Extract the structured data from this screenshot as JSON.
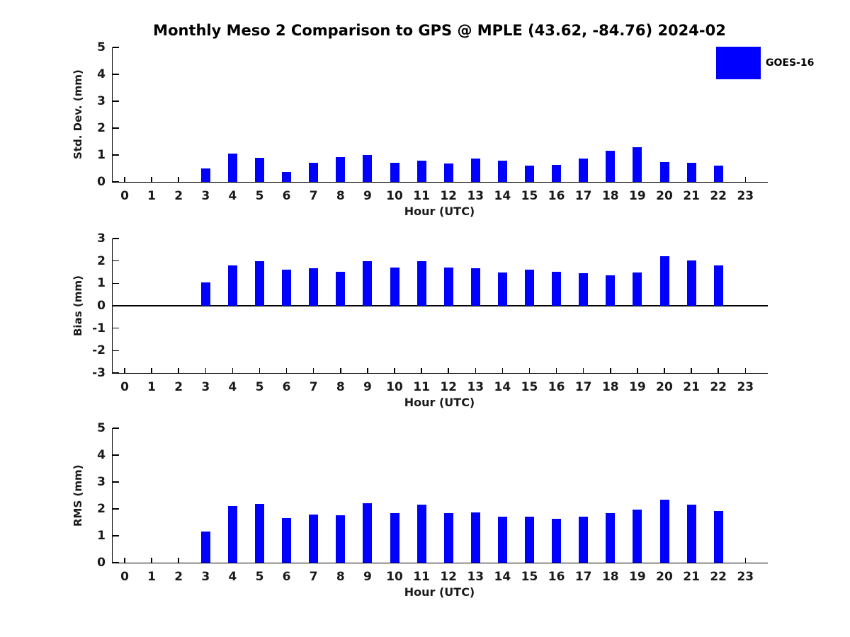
{
  "title": "Monthly Meso 2 Comparison to GPS @ MPLE (43.62, -84.76) 2024-02",
  "legend": {
    "label": "GOES-16",
    "color": "#0000FF",
    "position": "top-right"
  },
  "colors": {
    "bar": "#0000FF",
    "axis": "#000000",
    "tick_text": "#1a1a1a",
    "background": "#ffffff"
  },
  "chart_data": [
    {
      "type": "bar",
      "title": "",
      "xlabel": "Hour (UTC)",
      "ylabel": "Std. Dev. (mm)",
      "ylim": [
        0,
        5
      ],
      "yticks": [
        0,
        1,
        2,
        3,
        4,
        5
      ],
      "categories": [
        "0",
        "1",
        "2",
        "3",
        "4",
        "5",
        "6",
        "7",
        "8",
        "9",
        "10",
        "11",
        "12",
        "13",
        "14",
        "15",
        "16",
        "17",
        "18",
        "19",
        "20",
        "21",
        "22",
        "23"
      ],
      "series": [
        {
          "name": "GOES-16",
          "values": [
            null,
            null,
            null,
            0.5,
            1.04,
            0.9,
            0.38,
            0.7,
            0.91,
            0.99,
            0.7,
            0.78,
            0.69,
            0.87,
            0.8,
            0.6,
            0.63,
            0.87,
            1.17,
            1.28,
            0.74,
            0.71,
            0.6,
            null
          ]
        }
      ],
      "grid": false,
      "legend_position": "upper right"
    },
    {
      "type": "bar",
      "title": "",
      "xlabel": "Hour (UTC)",
      "ylabel": "Bias (mm)",
      "ylim": [
        -3,
        3
      ],
      "yticks": [
        -3,
        -2,
        -1,
        0,
        1,
        2,
        3
      ],
      "categories": [
        "0",
        "1",
        "2",
        "3",
        "4",
        "5",
        "6",
        "7",
        "8",
        "9",
        "10",
        "11",
        "12",
        "13",
        "14",
        "15",
        "16",
        "17",
        "18",
        "19",
        "20",
        "21",
        "22",
        "23"
      ],
      "series": [
        {
          "name": "GOES-16",
          "values": [
            null,
            null,
            null,
            1.05,
            1.8,
            2.0,
            1.62,
            1.68,
            1.52,
            2.0,
            1.7,
            2.0,
            1.7,
            1.67,
            1.5,
            1.6,
            1.53,
            1.46,
            1.37,
            1.5,
            2.22,
            2.02,
            1.8,
            null
          ]
        }
      ],
      "grid": false,
      "zero_line": true
    },
    {
      "type": "bar",
      "title": "",
      "xlabel": "Hour (UTC)",
      "ylabel": "RMS (mm)",
      "ylim": [
        0,
        5
      ],
      "yticks": [
        0,
        1,
        2,
        3,
        4,
        5
      ],
      "categories": [
        "0",
        "1",
        "2",
        "3",
        "4",
        "5",
        "6",
        "7",
        "8",
        "9",
        "10",
        "11",
        "12",
        "13",
        "14",
        "15",
        "16",
        "17",
        "18",
        "19",
        "20",
        "21",
        "22",
        "23"
      ],
      "series": [
        {
          "name": "GOES-16",
          "values": [
            null,
            null,
            null,
            1.15,
            2.1,
            2.18,
            1.65,
            1.78,
            1.76,
            2.21,
            1.84,
            2.15,
            1.84,
            1.87,
            1.71,
            1.7,
            1.64,
            1.7,
            1.84,
            1.97,
            2.33,
            2.16,
            1.91,
            null
          ]
        }
      ],
      "grid": false
    }
  ]
}
